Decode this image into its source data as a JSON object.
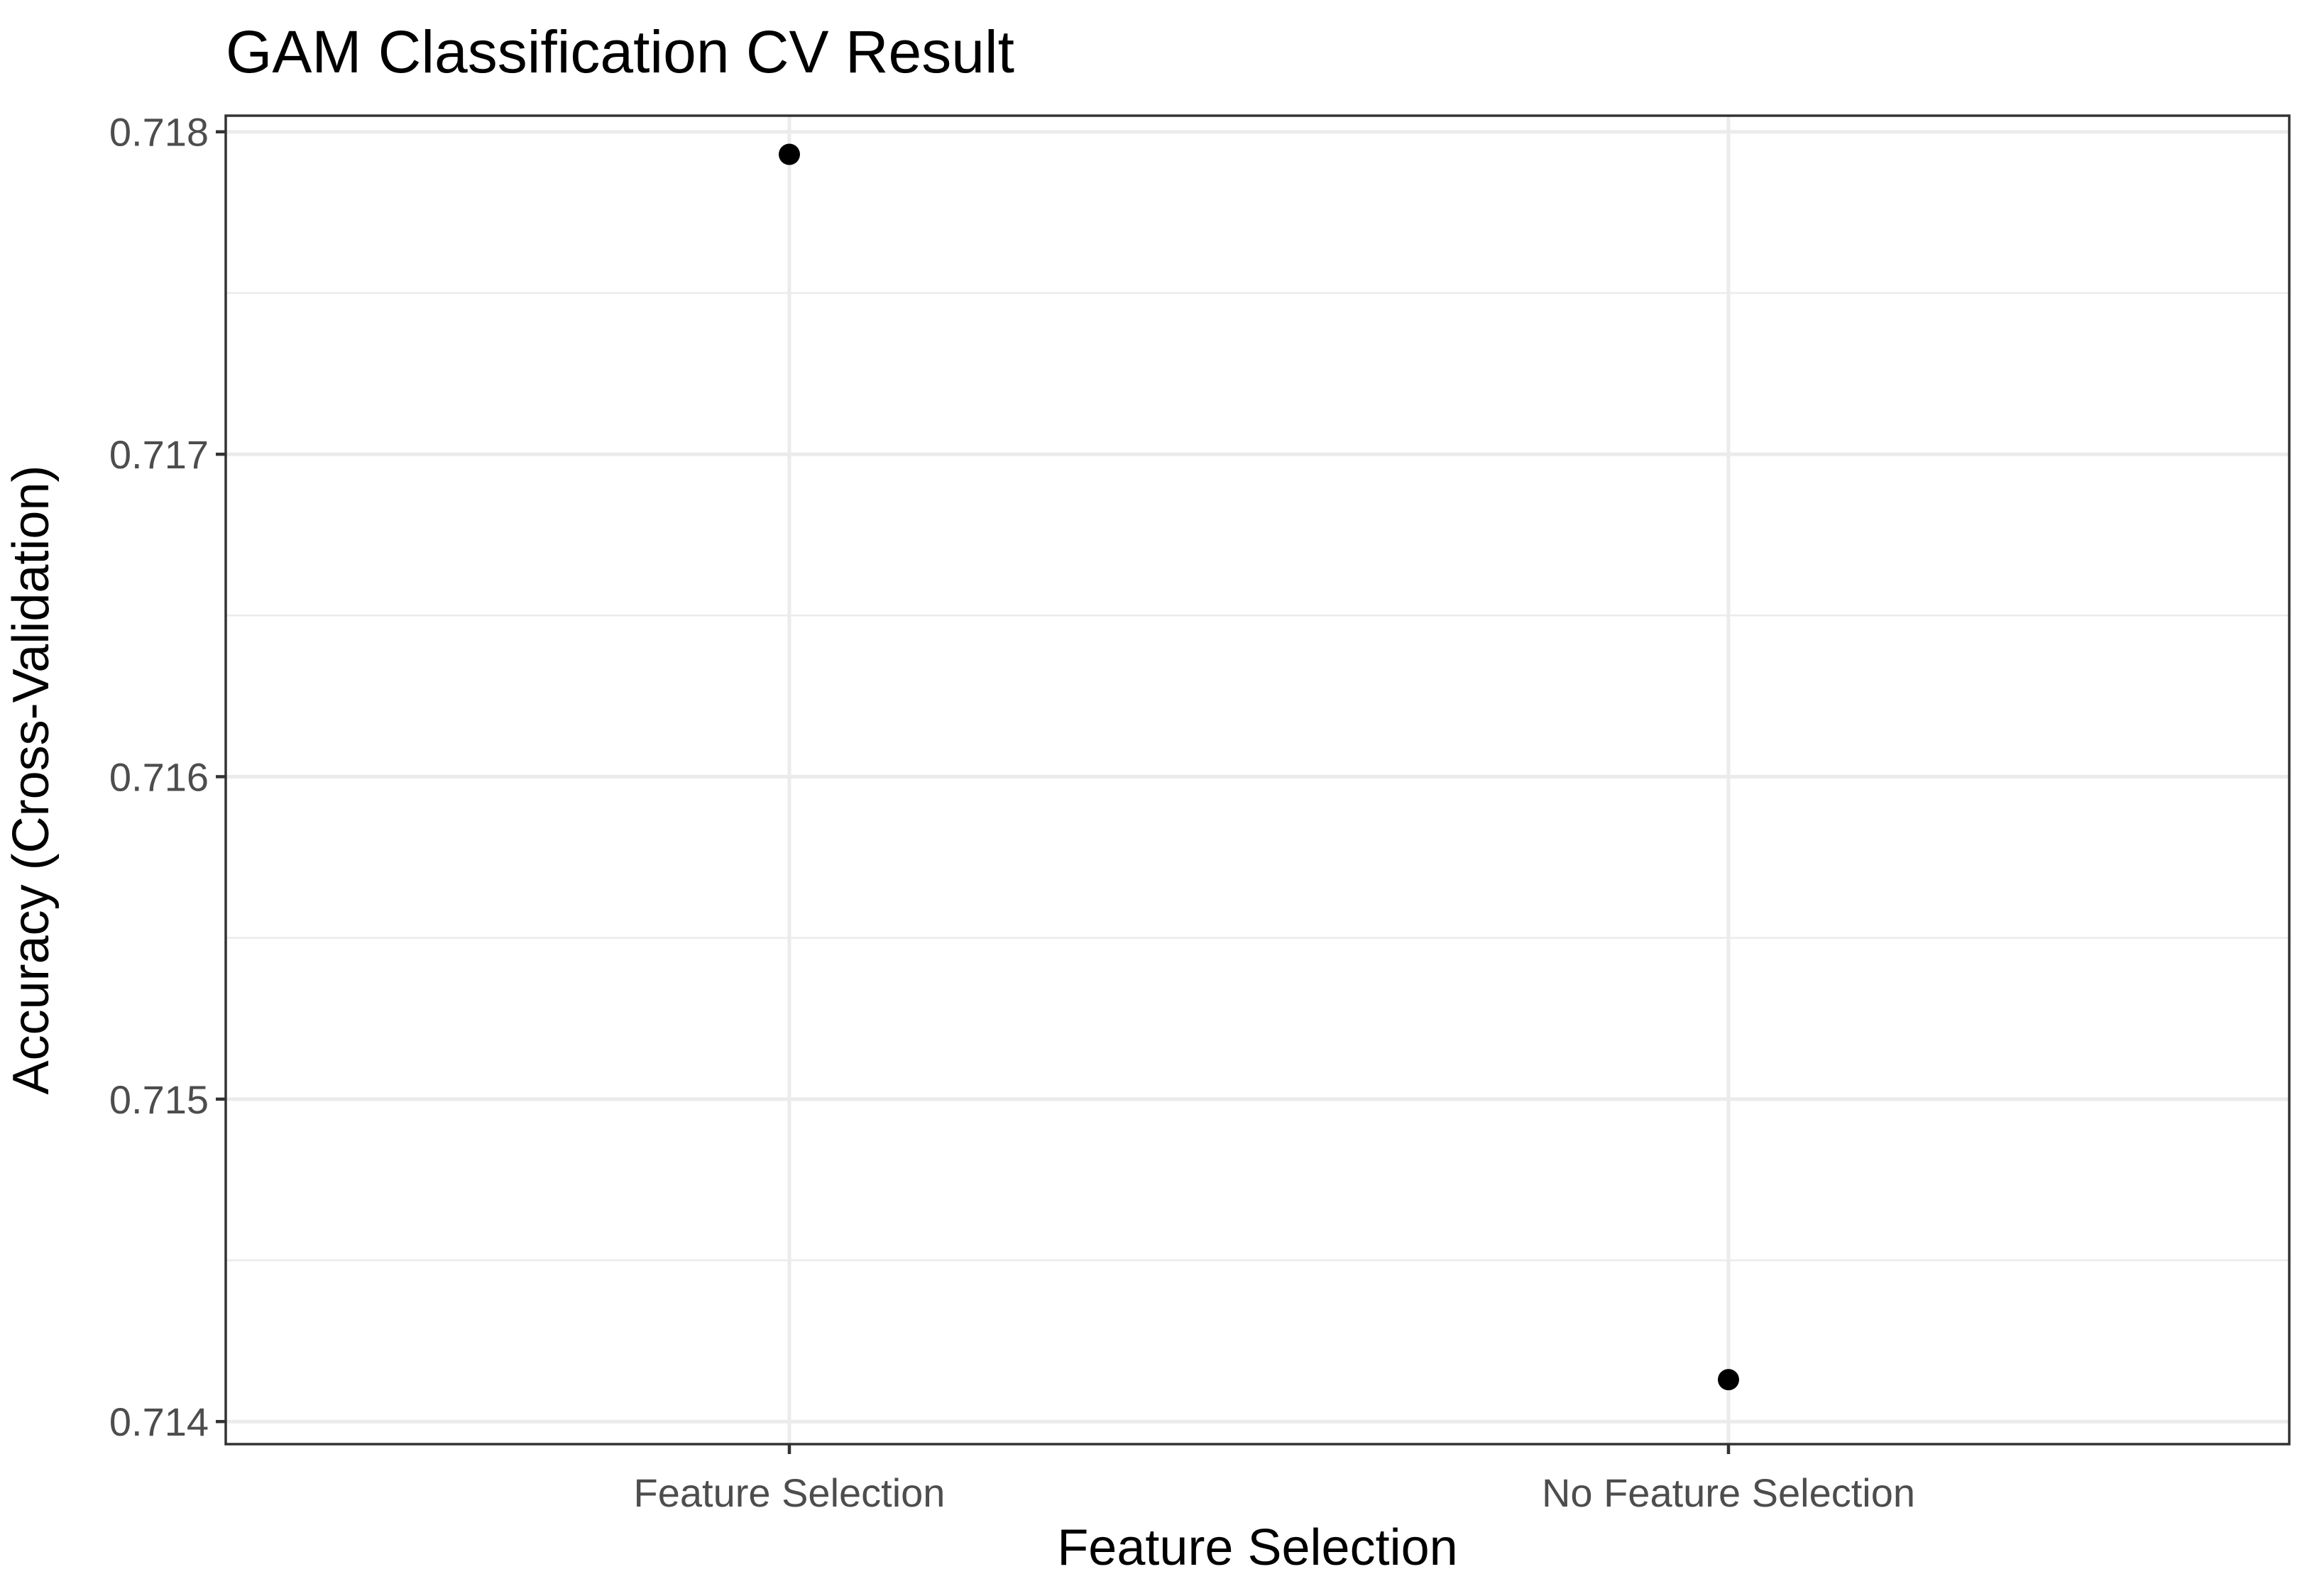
{
  "chart_data": {
    "type": "scatter",
    "title": "GAM Classification CV Result",
    "xlabel": "Feature Selection",
    "ylabel": "Accuracy (Cross-Validation)",
    "categories": [
      "Feature Selection",
      "No Feature Selection"
    ],
    "values": [
      0.71793,
      0.71413
    ],
    "ylim": [
      0.71393,
      0.71805
    ],
    "yticks": [
      0.714,
      0.715,
      0.716,
      0.717,
      0.718
    ],
    "ytick_labels": [
      "0.714",
      "0.715",
      "0.716",
      "0.717",
      "0.718"
    ],
    "grid": true,
    "legend": "none",
    "colors": {
      "point": "#000000",
      "grid": "#ebebeb",
      "border": "#333333",
      "tick_text": "#4d4d4d"
    }
  }
}
